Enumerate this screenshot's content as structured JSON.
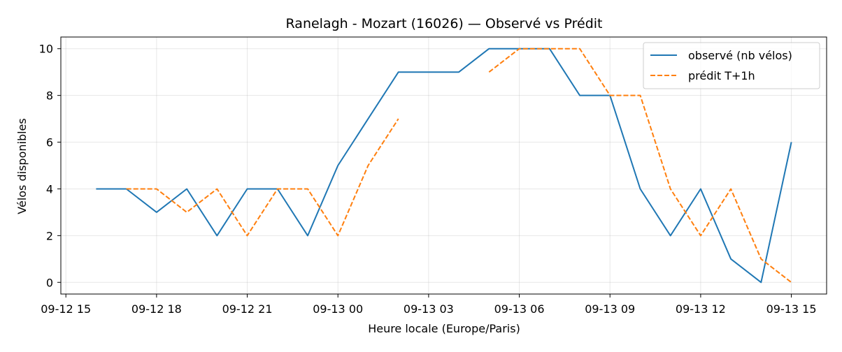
{
  "chart_data": {
    "type": "line",
    "title": "Ranelagh - Mozart (16026) — Observé vs Prédit",
    "xlabel": "Heure locale (Europe/Paris)",
    "ylabel": "Vélos disponibles",
    "xlim": [
      "2025-09-12 14:50",
      "2025-09-13 16:10"
    ],
    "ylim": [
      -0.5,
      10.5
    ],
    "grid": true,
    "legend": "top-right",
    "x_ticks": [
      {
        "t": "2025-09-12 15:00",
        "label": "09-12 15"
      },
      {
        "t": "2025-09-12 18:00",
        "label": "09-12 18"
      },
      {
        "t": "2025-09-12 21:00",
        "label": "09-12 21"
      },
      {
        "t": "2025-09-13 00:00",
        "label": "09-13 00"
      },
      {
        "t": "2025-09-13 03:00",
        "label": "09-13 03"
      },
      {
        "t": "2025-09-13 06:00",
        "label": "09-13 06"
      },
      {
        "t": "2025-09-13 09:00",
        "label": "09-13 09"
      },
      {
        "t": "2025-09-13 12:00",
        "label": "09-13 12"
      },
      {
        "t": "2025-09-13 15:00",
        "label": "09-13 15"
      }
    ],
    "y_ticks": [
      0,
      2,
      4,
      6,
      8,
      10
    ],
    "series": [
      {
        "name": "observé (nb vélos)",
        "color": "#1f77b4",
        "style": "solid",
        "points": [
          [
            "2025-09-12 16:00",
            4
          ],
          [
            "2025-09-12 17:00",
            4
          ],
          [
            "2025-09-12 18:00",
            3
          ],
          [
            "2025-09-12 19:00",
            4
          ],
          [
            "2025-09-12 20:00",
            2
          ],
          [
            "2025-09-12 21:00",
            4
          ],
          [
            "2025-09-12 22:00",
            4
          ],
          [
            "2025-09-12 23:00",
            2
          ],
          [
            "2025-09-13 00:00",
            5
          ],
          [
            "2025-09-13 01:00",
            7
          ],
          [
            "2025-09-13 02:00",
            9
          ],
          [
            "2025-09-13 03:00",
            9
          ],
          [
            "2025-09-13 04:00",
            9
          ],
          [
            "2025-09-13 05:00",
            10
          ],
          [
            "2025-09-13 06:00",
            10
          ],
          [
            "2025-09-13 07:00",
            10
          ],
          [
            "2025-09-13 08:00",
            8
          ],
          [
            "2025-09-13 09:00",
            8
          ],
          [
            "2025-09-13 10:00",
            4
          ],
          [
            "2025-09-13 11:00",
            2
          ],
          [
            "2025-09-13 12:00",
            4
          ],
          [
            "2025-09-13 13:00",
            1
          ],
          [
            "2025-09-13 14:00",
            0
          ],
          [
            "2025-09-13 15:00",
            6
          ]
        ]
      },
      {
        "name": "prédit T+1h",
        "color": "#ff7f0e",
        "style": "dashed",
        "points": [
          [
            "2025-09-12 17:00",
            4
          ],
          [
            "2025-09-12 18:00",
            4
          ],
          [
            "2025-09-12 19:00",
            3
          ],
          [
            "2025-09-12 20:00",
            4
          ],
          [
            "2025-09-12 21:00",
            2
          ],
          [
            "2025-09-12 22:00",
            4
          ],
          [
            "2025-09-12 23:00",
            4
          ],
          [
            "2025-09-13 00:00",
            2
          ],
          [
            "2025-09-13 01:00",
            5
          ],
          [
            "2025-09-13 02:00",
            7
          ],
          null,
          [
            "2025-09-13 05:00",
            9
          ],
          [
            "2025-09-13 06:00",
            10
          ],
          [
            "2025-09-13 07:00",
            10
          ],
          [
            "2025-09-13 08:00",
            10
          ],
          [
            "2025-09-13 09:00",
            8
          ],
          [
            "2025-09-13 10:00",
            8
          ],
          [
            "2025-09-13 11:00",
            4
          ],
          [
            "2025-09-13 12:00",
            2
          ],
          [
            "2025-09-13 13:00",
            4
          ],
          [
            "2025-09-13 14:00",
            1
          ],
          [
            "2025-09-13 15:00",
            0
          ]
        ]
      }
    ]
  }
}
